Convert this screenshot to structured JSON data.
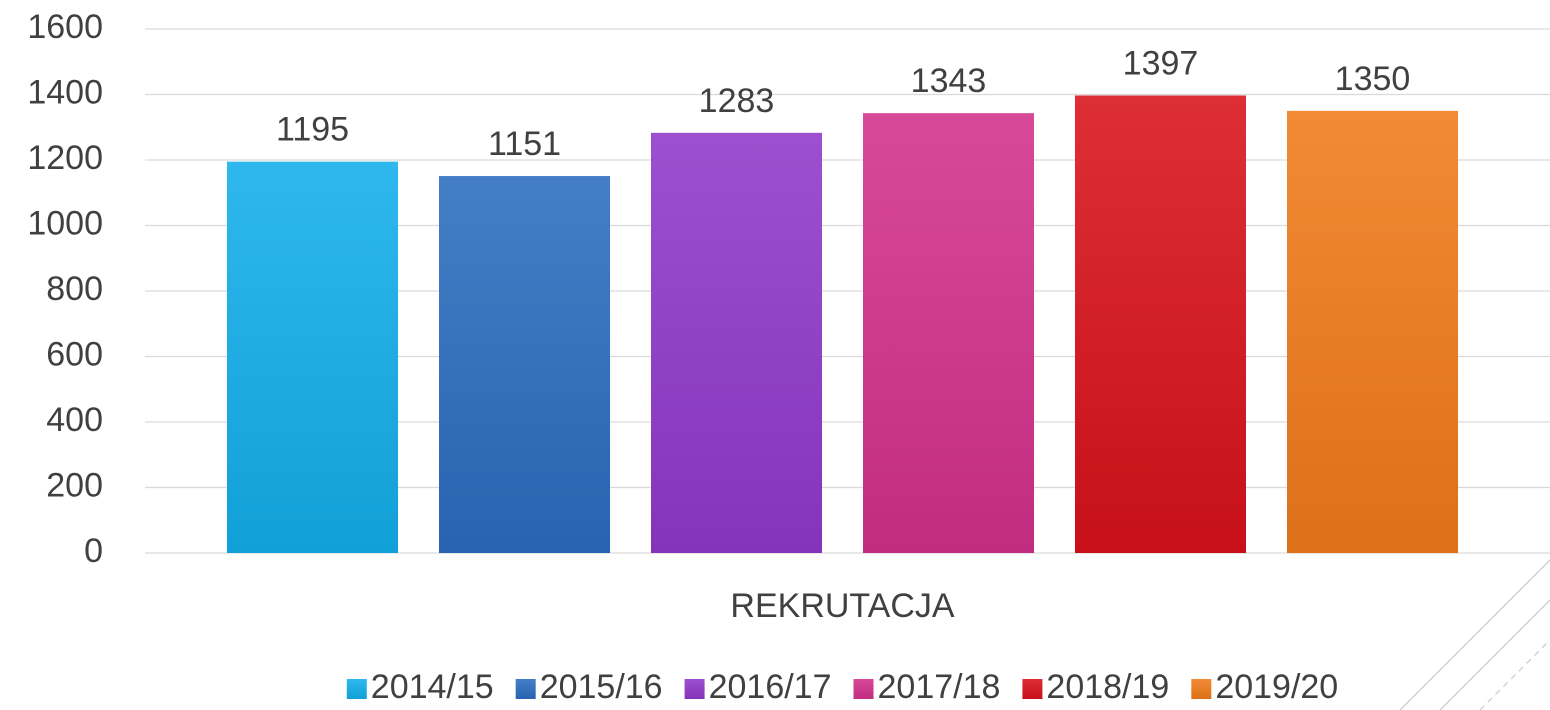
{
  "chart_data": {
    "type": "bar",
    "categories": [
      "REKRUTACJA"
    ],
    "series": [
      {
        "name": "2014/15",
        "color": "#12aeea",
        "values": [
          1195
        ]
      },
      {
        "name": "2015/16",
        "color": "#2a6cbe",
        "values": [
          1151
        ]
      },
      {
        "name": "2016/17",
        "color": "#8f38ca",
        "values": [
          1283
        ]
      },
      {
        "name": "2017/18",
        "color": "#d3308b",
        "values": [
          1343
        ]
      },
      {
        "name": "2018/19",
        "color": "#d8111b",
        "values": [
          1397
        ]
      },
      {
        "name": "2019/20",
        "color": "#f07a1a",
        "values": [
          1350
        ]
      }
    ],
    "ylim": [
      0,
      1600
    ],
    "yticks": [
      0,
      200,
      400,
      600,
      800,
      1000,
      1200,
      1400,
      1600
    ],
    "grid": true,
    "legend": "bottom",
    "data_labels": true
  }
}
